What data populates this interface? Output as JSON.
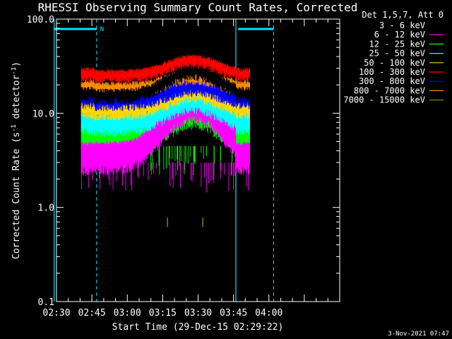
{
  "chart_data": {
    "type": "line",
    "title": "RHESSI Observing Summary Count Rates, Corrected",
    "xlabel": "Start Time (29-Dec-15 02:29:22)",
    "ylabel_main": "Corrected Count Rate (s",
    "ylabel_sup1": "-1",
    "ylabel_mid": " detector",
    "ylabel_sup2": "-1",
    "ylabel_end": ")",
    "yscale": "log",
    "ylim": [
      0.1,
      100
    ],
    "xlim_minutes": [
      0,
      120
    ],
    "x_ticks": [
      {
        "label": "02:30",
        "min": 0
      },
      {
        "label": "02:45",
        "min": 15
      },
      {
        "label": "03:00",
        "min": 30
      },
      {
        "label": "03:15",
        "min": 45
      },
      {
        "label": "03:30",
        "min": 60
      },
      {
        "label": "03:45",
        "min": 75
      },
      {
        "label": "04:00",
        "min": 90
      }
    ],
    "y_ticks": [
      {
        "label": "100.0",
        "value": 100
      },
      {
        "label": "10.0",
        "value": 10
      },
      {
        "label": "1.0",
        "value": 1
      },
      {
        "label": "0.1",
        "value": 0.1
      }
    ],
    "legend_header": "Det 1,5,7, Att 0",
    "legend_position": "right-outside",
    "series": [
      {
        "name": "3 - 6 keV",
        "color": "#000000",
        "start_value": 15,
        "peak_value": 27
      },
      {
        "name": "6 - 12 keV",
        "color": "#ff00ff",
        "start_value": 4.0,
        "peak_value": 14
      },
      {
        "name": "12 - 25 keV",
        "color": "#00ff00",
        "start_value": 6.0,
        "peak_value": 12
      },
      {
        "name": "25 - 50 keV",
        "color": "#00ffff",
        "start_value": 8.0,
        "peak_value": 14
      },
      {
        "name": "50 - 100 keV",
        "color": "#ffd700",
        "start_value": 11,
        "peak_value": 17
      },
      {
        "name": "100 - 300 keV",
        "color": "#ff0000",
        "start_value": 24,
        "peak_value": 35
      },
      {
        "name": "300 - 800 keV",
        "color": "#0000ff",
        "start_value": 14,
        "peak_value": 20
      },
      {
        "name": "800 - 7000 keV",
        "color": "#ff8c00",
        "start_value": 18,
        "peak_value": 25
      },
      {
        "name": "7000 - 15000 keV",
        "color": "#808000",
        "start_value": 0.7,
        "peak_value": 0.7
      }
    ],
    "data_start_min": 10.5,
    "data_end_min": 82,
    "gap_start_min": 16,
    "gap_end_min": 76,
    "peak_min": 58,
    "night_marker_label": "N",
    "vertical_solid_min": [
      -1,
      76
    ],
    "vertical_dashed_min": [
      17,
      92
    ],
    "top_bars_min": [
      [
        -1,
        17
      ],
      [
        77,
        92
      ]
    ]
  },
  "timestamp": "3-Nov-2021 07:47",
  "colors": {
    "background": "#000000",
    "foreground": "#ffffff",
    "marker": "#00e5ff"
  }
}
